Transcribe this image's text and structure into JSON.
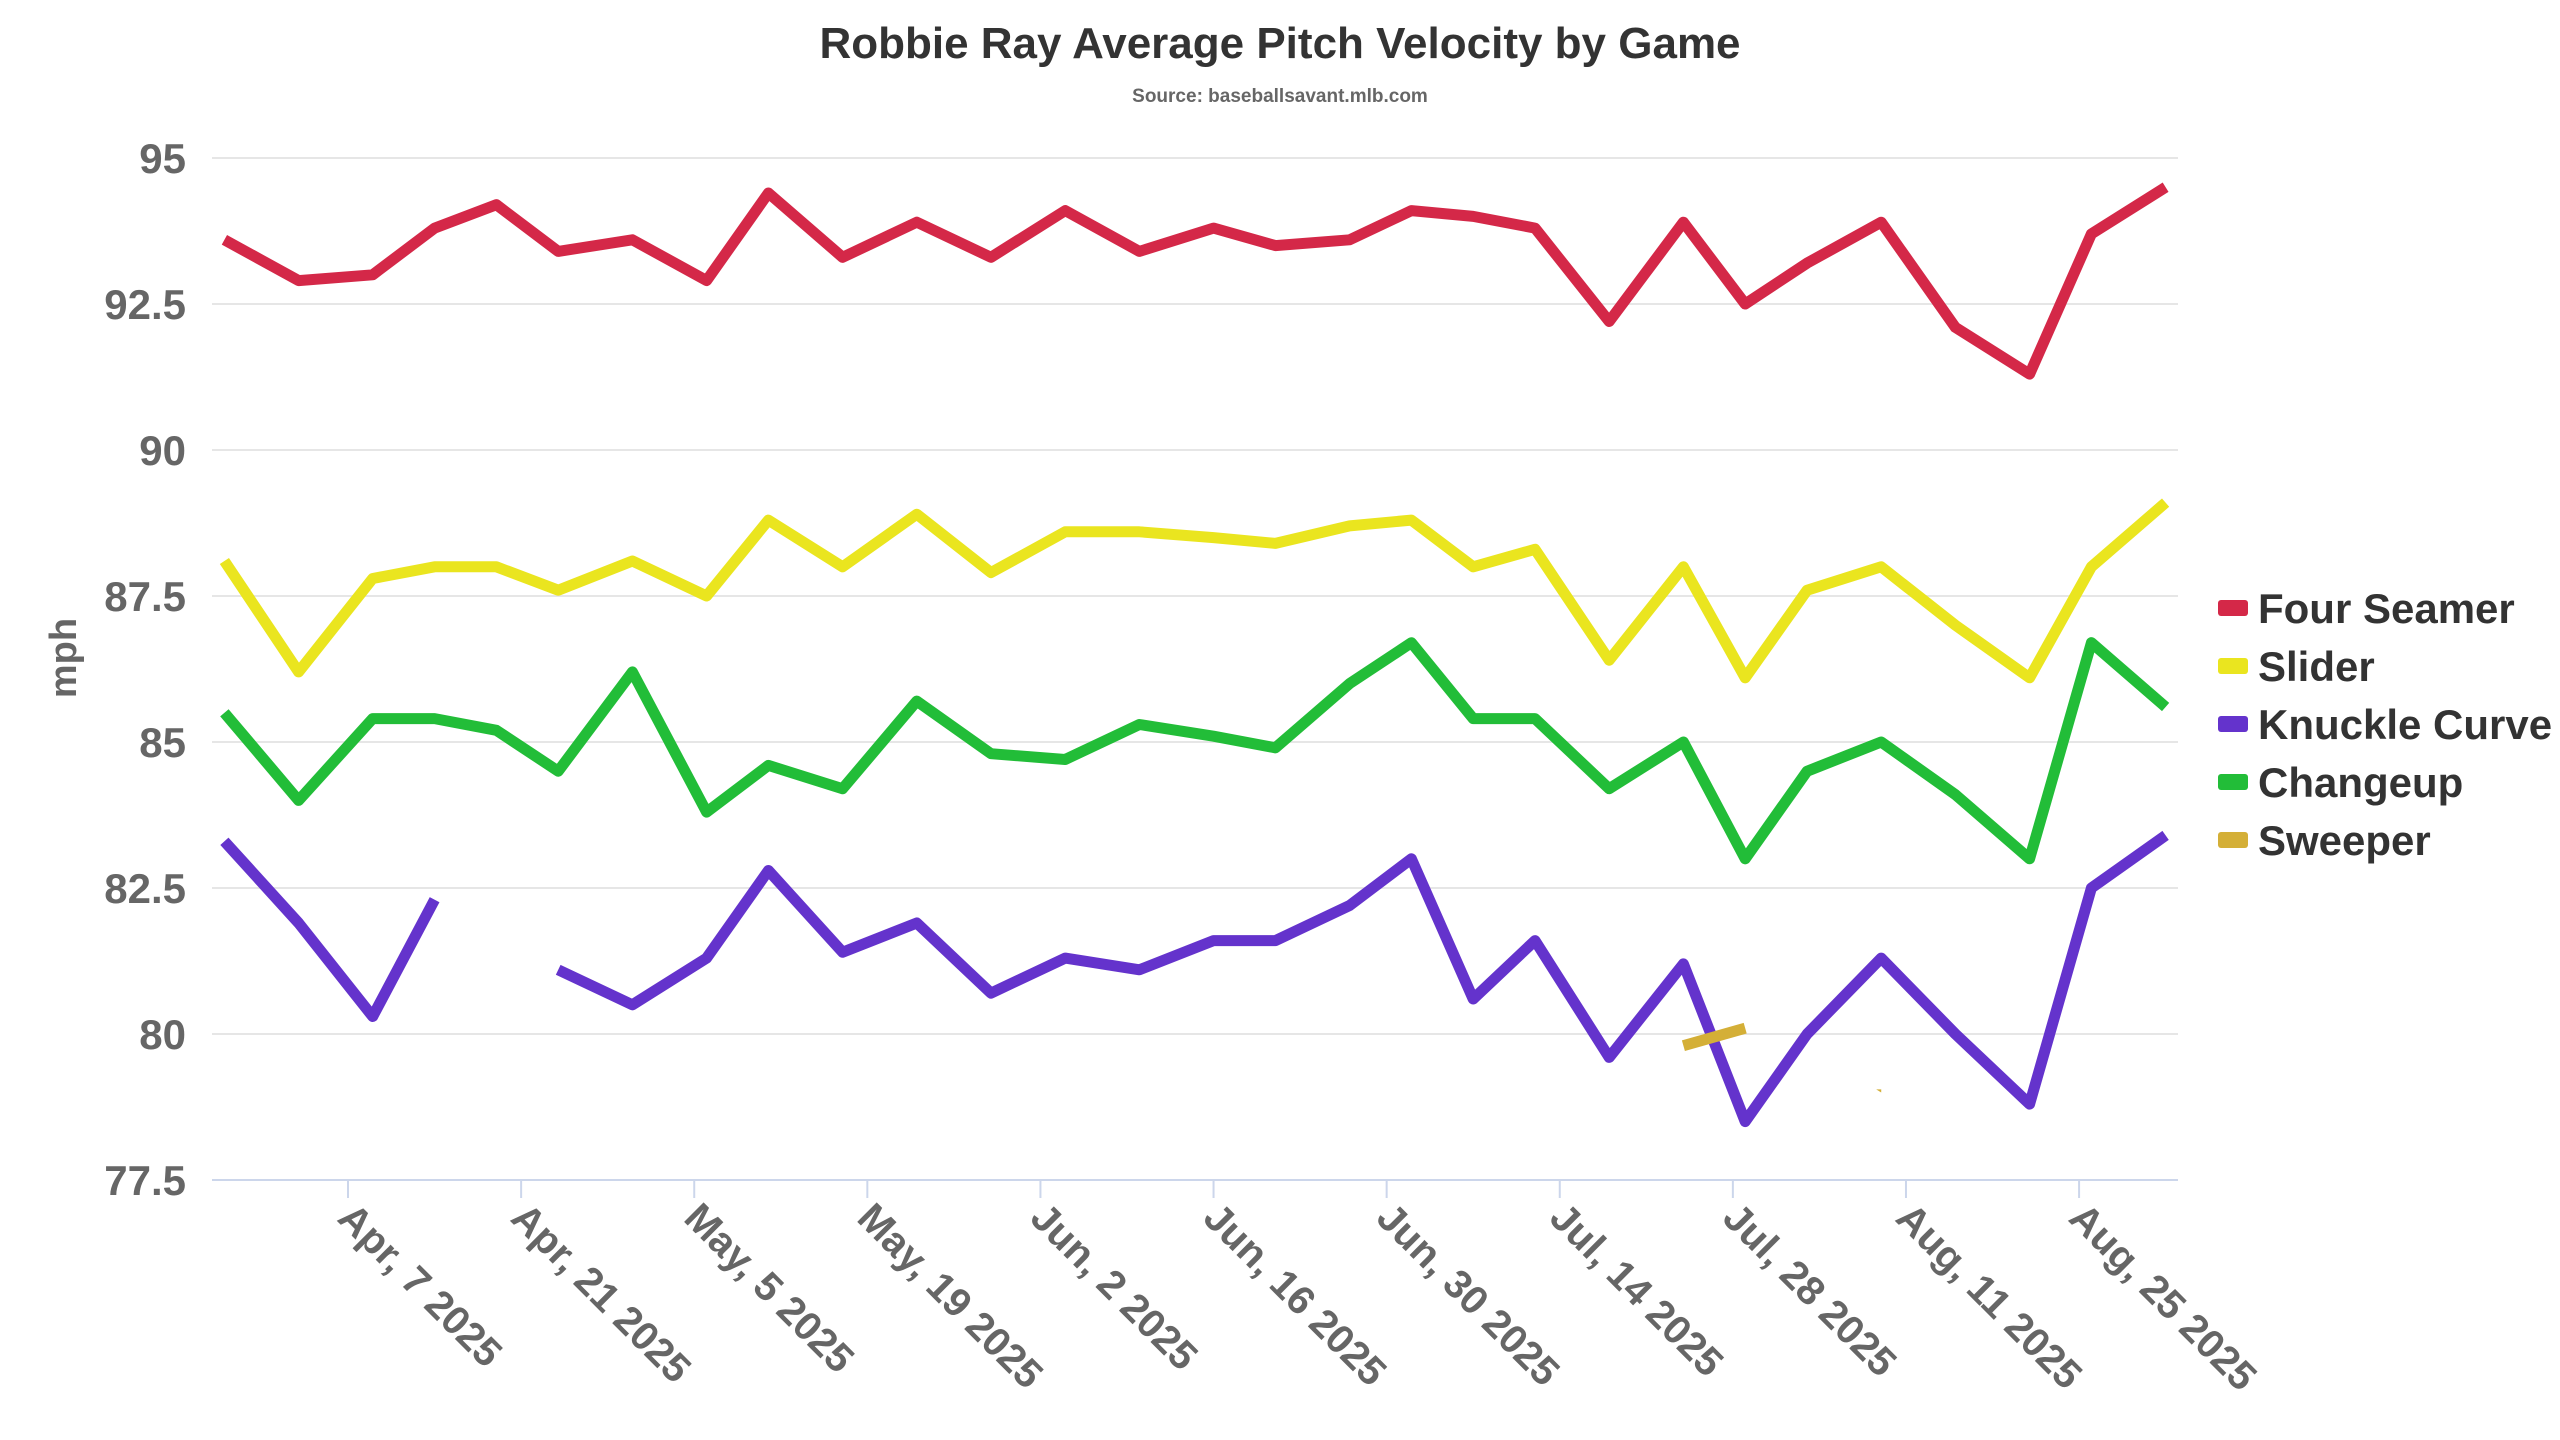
{
  "chart_data": {
    "type": "line",
    "title": "Robbie Ray Average Pitch Velocity by Game",
    "subtitle": "Source: baseballsavant.mlb.com",
    "xlabel": "",
    "ylabel": "mph",
    "ylim": [
      77.5,
      95
    ],
    "yticks": [
      "77.5",
      "80",
      "82.5",
      "85",
      "87.5",
      "90",
      "92.5",
      "95"
    ],
    "xlim": [
      "2025-03-27",
      "2025-09-02"
    ],
    "xticks": [
      {
        "date": "2025-04-07",
        "label": "Apr, 7 2025"
      },
      {
        "date": "2025-04-21",
        "label": "Apr, 21 2025"
      },
      {
        "date": "2025-05-05",
        "label": "May, 5 2025"
      },
      {
        "date": "2025-05-19",
        "label": "May, 19 2025"
      },
      {
        "date": "2025-06-02",
        "label": "Jun, 2 2025"
      },
      {
        "date": "2025-06-16",
        "label": "Jun, 16 2025"
      },
      {
        "date": "2025-06-30",
        "label": "Jun, 30 2025"
      },
      {
        "date": "2025-07-14",
        "label": "Jul, 14 2025"
      },
      {
        "date": "2025-07-28",
        "label": "Jul, 28 2025"
      },
      {
        "date": "2025-08-11",
        "label": "Aug, 11 2025"
      },
      {
        "date": "2025-08-25",
        "label": "Aug, 25 2025"
      }
    ],
    "grid": true,
    "legend_position": "right",
    "x": [
      "2025-03-28",
      "2025-04-03",
      "2025-04-09",
      "2025-04-14",
      "2025-04-19",
      "2025-04-24",
      "2025-04-30",
      "2025-05-06",
      "2025-05-11",
      "2025-05-17",
      "2025-05-23",
      "2025-05-29",
      "2025-06-04",
      "2025-06-10",
      "2025-06-16",
      "2025-06-21",
      "2025-06-27",
      "2025-07-02",
      "2025-07-07",
      "2025-07-12",
      "2025-07-18",
      "2025-07-24",
      "2025-07-29",
      "2025-08-03",
      "2025-08-09",
      "2025-08-15",
      "2025-08-21",
      "2025-08-26",
      "2025-09-01"
    ],
    "series": [
      {
        "name": "Four Seamer",
        "color": "#d42848",
        "values": [
          93.6,
          92.9,
          93.0,
          93.8,
          94.2,
          93.4,
          93.6,
          92.9,
          94.4,
          93.3,
          93.9,
          93.3,
          94.1,
          93.4,
          93.8,
          93.5,
          93.6,
          94.1,
          94.0,
          93.8,
          92.2,
          93.9,
          92.5,
          93.2,
          93.9,
          92.1,
          91.3,
          93.7,
          94.5
        ]
      },
      {
        "name": "Slider",
        "color": "#eae51f",
        "values": [
          88.1,
          86.2,
          87.8,
          88.0,
          88.0,
          87.6,
          88.1,
          87.5,
          88.8,
          88.0,
          88.9,
          87.9,
          88.6,
          88.6,
          88.5,
          88.4,
          88.7,
          88.8,
          88.0,
          88.3,
          86.4,
          88.0,
          86.1,
          87.6,
          88.0,
          87.0,
          86.1,
          88.0,
          89.1
        ]
      },
      {
        "name": "Knuckle Curve",
        "color": "#6433cc",
        "values": [
          83.3,
          81.9,
          80.3,
          82.3,
          null,
          81.1,
          80.5,
          81.3,
          82.8,
          81.4,
          81.9,
          80.7,
          81.3,
          81.1,
          81.6,
          81.6,
          82.2,
          83.0,
          80.6,
          81.6,
          79.6,
          81.2,
          78.5,
          80.0,
          81.3,
          80.0,
          78.8,
          82.5,
          83.4
        ]
      },
      {
        "name": "Changeup",
        "color": "#22bd38",
        "values": [
          85.5,
          84.0,
          85.4,
          85.4,
          85.2,
          84.5,
          86.2,
          83.8,
          84.6,
          84.2,
          85.7,
          84.8,
          84.7,
          85.3,
          85.1,
          84.9,
          86.0,
          86.7,
          85.4,
          85.4,
          84.2,
          85.0,
          83.0,
          84.5,
          85.0,
          84.1,
          83.0,
          86.7,
          85.6
        ]
      },
      {
        "name": "Sweeper",
        "color": "#d4af37",
        "values": [
          null,
          null,
          null,
          null,
          null,
          null,
          null,
          null,
          null,
          null,
          null,
          null,
          null,
          null,
          null,
          null,
          null,
          null,
          null,
          null,
          null,
          79.8,
          80.1,
          null,
          79.0,
          null,
          null,
          null,
          null
        ]
      }
    ]
  }
}
